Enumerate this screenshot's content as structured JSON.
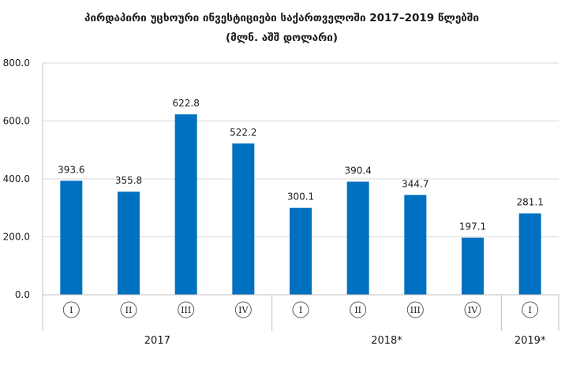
{
  "chart_data": {
    "type": "bar",
    "title": "პირდაპირი უცხოური ინვესტიციები საქართველოში  2017–2019 წლებში",
    "subtitle": "(მლნ. აშშ დოლარი)",
    "xlabel": "",
    "ylabel": "",
    "ylim": [
      0,
      800
    ],
    "yticks": [
      "0.0",
      "200.0",
      "400.0",
      "600.0",
      "800.0"
    ],
    "grid": true,
    "bar_color": "#0070C0",
    "categories": [
      "I",
      "II",
      "III",
      "IV",
      "I",
      "II",
      "III",
      "IV",
      "I"
    ],
    "values": [
      393.6,
      355.8,
      622.8,
      522.2,
      300.1,
      390.4,
      344.7,
      197.1,
      281.1
    ],
    "value_labels": [
      "393.6",
      "355.8",
      "622.8",
      "522.2",
      "300.1",
      "390.4",
      "344.7",
      "197.1",
      "281.1"
    ],
    "groups": [
      {
        "label": "2017",
        "count": 4
      },
      {
        "label": "2018*",
        "count": 4
      },
      {
        "label": "2019*",
        "count": 1
      }
    ]
  }
}
